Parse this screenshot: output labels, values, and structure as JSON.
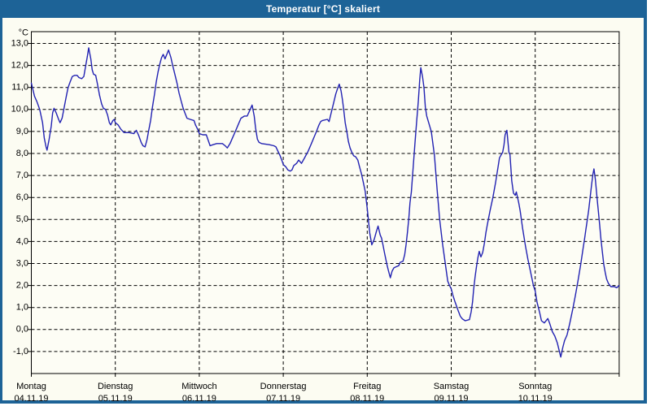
{
  "window": {
    "title": "Temperatur [°C] skaliert",
    "title_bar_color": "#1D6397",
    "border_color": "#1D6397",
    "background_color": "#FCFCF2",
    "plot_background_color": "#FDFDF5"
  },
  "chart_data": {
    "type": "line",
    "title": "Temperatur [°C] skaliert",
    "xlabel": "",
    "ylabel": "°C",
    "y_unit_label": "°C",
    "grid": "dashed",
    "legend": "none",
    "line_color": "#2222B2",
    "axis_color": "#000000",
    "ylim": [
      -2.0,
      13.5
    ],
    "xlim_hours": [
      0,
      168
    ],
    "y_ticks": [
      {
        "value": 13,
        "label": "13,0"
      },
      {
        "value": 12,
        "label": "12,0"
      },
      {
        "value": 11,
        "label": "11,0"
      },
      {
        "value": 10,
        "label": "10,0"
      },
      {
        "value": 9,
        "label": "9,0"
      },
      {
        "value": 8,
        "label": "8,0"
      },
      {
        "value": 7,
        "label": "7,0"
      },
      {
        "value": 6,
        "label": "6,0"
      },
      {
        "value": 5,
        "label": "5,0"
      },
      {
        "value": 4,
        "label": "4,0"
      },
      {
        "value": 3,
        "label": "3,0"
      },
      {
        "value": 2,
        "label": "2,0"
      },
      {
        "value": 1,
        "label": "1,0"
      },
      {
        "value": 0,
        "label": "0,0"
      },
      {
        "value": -1,
        "label": "-1,0"
      }
    ],
    "x_days": [
      {
        "weekday": "Montag",
        "date": "04.11.19"
      },
      {
        "weekday": "Dienstag",
        "date": "05.11.19"
      },
      {
        "weekday": "Mittwoch",
        "date": "06.11.19"
      },
      {
        "weekday": "Donnerstag",
        "date": "07.11.19"
      },
      {
        "weekday": "Freitag",
        "date": "08.11.19"
      },
      {
        "weekday": "Samstag",
        "date": "09.11.19"
      },
      {
        "weekday": "Sonntag",
        "date": "10.11.19"
      }
    ],
    "series": [
      {
        "name": "Temperatur",
        "points": [
          [
            0,
            11.2
          ],
          [
            0.9,
            10.6
          ],
          [
            1.6,
            10.35
          ],
          [
            2.4,
            10.0
          ],
          [
            3.2,
            9.4
          ],
          [
            3.7,
            8.7
          ],
          [
            4.2,
            8.3
          ],
          [
            4.5,
            8.15
          ],
          [
            5.1,
            8.65
          ],
          [
            5.7,
            9.25
          ],
          [
            6.1,
            9.85
          ],
          [
            6.5,
            10.05
          ],
          [
            7.1,
            9.85
          ],
          [
            7.8,
            9.55
          ],
          [
            8.2,
            9.4
          ],
          [
            8.8,
            9.6
          ],
          [
            9.4,
            10.1
          ],
          [
            10,
            10.6
          ],
          [
            10.5,
            11.0
          ],
          [
            11.1,
            11.25
          ],
          [
            11.7,
            11.5
          ],
          [
            12.4,
            11.55
          ],
          [
            13.1,
            11.55
          ],
          [
            13.6,
            11.45
          ],
          [
            14.4,
            11.4
          ],
          [
            15,
            11.5
          ],
          [
            15.6,
            12.05
          ],
          [
            16,
            12.4
          ],
          [
            16.4,
            12.8
          ],
          [
            17,
            12.3
          ],
          [
            17.4,
            11.8
          ],
          [
            17.8,
            11.6
          ],
          [
            18.4,
            11.55
          ],
          [
            18.9,
            11.15
          ],
          [
            19.5,
            10.65
          ],
          [
            20.1,
            10.25
          ],
          [
            20.6,
            10.05
          ],
          [
            21.2,
            10.0
          ],
          [
            21.8,
            9.75
          ],
          [
            22.3,
            9.4
          ],
          [
            22.7,
            9.3
          ],
          [
            23.3,
            9.5
          ],
          [
            23.7,
            9.55
          ],
          [
            24,
            9.4
          ],
          [
            24.8,
            9.3
          ],
          [
            25.6,
            9.1
          ],
          [
            26.5,
            8.95
          ],
          [
            28,
            8.95
          ],
          [
            29.3,
            8.9
          ],
          [
            30,
            9.05
          ],
          [
            30.6,
            8.85
          ],
          [
            31.4,
            8.5
          ],
          [
            31.9,
            8.35
          ],
          [
            32.5,
            8.3
          ],
          [
            33.1,
            8.65
          ],
          [
            33.5,
            9.0
          ],
          [
            34.1,
            9.5
          ],
          [
            34.6,
            10.1
          ],
          [
            35.2,
            10.7
          ],
          [
            35.7,
            11.25
          ],
          [
            36.2,
            11.7
          ],
          [
            36.7,
            12.05
          ],
          [
            37.2,
            12.35
          ],
          [
            37.7,
            12.5
          ],
          [
            38.2,
            12.3
          ],
          [
            39.2,
            12.7
          ],
          [
            39.9,
            12.35
          ],
          [
            40.4,
            12.0
          ],
          [
            41.1,
            11.55
          ],
          [
            41.7,
            11.15
          ],
          [
            42.2,
            10.75
          ],
          [
            42.8,
            10.4
          ],
          [
            43.4,
            10.05
          ],
          [
            44,
            9.8
          ],
          [
            44.5,
            9.6
          ],
          [
            45.4,
            9.55
          ],
          [
            46.5,
            9.5
          ],
          [
            46.9,
            9.3
          ],
          [
            47.7,
            9.05
          ],
          [
            48,
            8.9
          ],
          [
            49,
            8.85
          ],
          [
            50,
            8.85
          ],
          [
            51.1,
            8.35
          ],
          [
            51.9,
            8.4
          ],
          [
            53,
            8.45
          ],
          [
            54.6,
            8.45
          ],
          [
            55.4,
            8.35
          ],
          [
            56,
            8.25
          ],
          [
            56.8,
            8.45
          ],
          [
            57.6,
            8.75
          ],
          [
            58.3,
            9.0
          ],
          [
            59.1,
            9.3
          ],
          [
            59.9,
            9.6
          ],
          [
            60.9,
            9.7
          ],
          [
            61.7,
            9.7
          ],
          [
            62.4,
            9.95
          ],
          [
            63.1,
            10.2
          ],
          [
            63.7,
            9.7
          ],
          [
            64.1,
            9.15
          ],
          [
            64.6,
            8.65
          ],
          [
            65.1,
            8.5
          ],
          [
            65.8,
            8.45
          ],
          [
            68,
            8.4
          ],
          [
            69.3,
            8.35
          ],
          [
            69.9,
            8.3
          ],
          [
            70.5,
            8.1
          ],
          [
            71.1,
            7.9
          ],
          [
            71.8,
            7.6
          ],
          [
            72,
            7.5
          ],
          [
            72.7,
            7.4
          ],
          [
            73.3,
            7.25
          ],
          [
            74,
            7.2
          ],
          [
            74.5,
            7.25
          ],
          [
            75,
            7.45
          ],
          [
            75.8,
            7.55
          ],
          [
            76.4,
            7.7
          ],
          [
            77.2,
            7.55
          ],
          [
            78.1,
            7.8
          ],
          [
            79.1,
            8.1
          ],
          [
            79.9,
            8.4
          ],
          [
            80.7,
            8.7
          ],
          [
            81.5,
            9.0
          ],
          [
            82.2,
            9.3
          ],
          [
            82.7,
            9.45
          ],
          [
            83.2,
            9.5
          ],
          [
            84.6,
            9.55
          ],
          [
            85.1,
            9.45
          ],
          [
            85.7,
            9.85
          ],
          [
            86.4,
            10.3
          ],
          [
            87,
            10.7
          ],
          [
            87.5,
            10.95
          ],
          [
            88,
            11.15
          ],
          [
            88.5,
            10.85
          ],
          [
            88.9,
            10.45
          ],
          [
            89.3,
            9.95
          ],
          [
            89.7,
            9.4
          ],
          [
            90.2,
            8.95
          ],
          [
            90.6,
            8.55
          ],
          [
            91.1,
            8.25
          ],
          [
            91.6,
            8.05
          ],
          [
            92.1,
            7.9
          ],
          [
            92.7,
            7.85
          ],
          [
            93.3,
            7.7
          ],
          [
            93.8,
            7.4
          ],
          [
            94.3,
            7.1
          ],
          [
            94.8,
            6.75
          ],
          [
            95.4,
            6.3
          ],
          [
            96,
            5.5
          ],
          [
            96.7,
            4.4
          ],
          [
            97.3,
            3.85
          ],
          [
            98,
            4.1
          ],
          [
            98.6,
            4.45
          ],
          [
            99.1,
            4.7
          ],
          [
            99.7,
            4.3
          ],
          [
            100.1,
            4.15
          ],
          [
            100.5,
            3.85
          ],
          [
            100.9,
            3.5
          ],
          [
            101.3,
            3.2
          ],
          [
            101.7,
            2.9
          ],
          [
            102.1,
            2.65
          ],
          [
            102.6,
            2.35
          ],
          [
            103.1,
            2.65
          ],
          [
            103.6,
            2.8
          ],
          [
            104.2,
            2.85
          ],
          [
            105,
            2.9
          ],
          [
            105.4,
            3.05
          ],
          [
            106.2,
            3.1
          ],
          [
            106.7,
            3.4
          ],
          [
            107.1,
            3.85
          ],
          [
            107.5,
            4.45
          ],
          [
            107.9,
            5.1
          ],
          [
            108.2,
            5.75
          ],
          [
            108.6,
            6.25
          ],
          [
            109.1,
            7.3
          ],
          [
            109.6,
            8.4
          ],
          [
            110.1,
            9.4
          ],
          [
            110.6,
            10.4
          ],
          [
            111,
            11.35
          ],
          [
            111.3,
            11.9
          ],
          [
            111.8,
            11.5
          ],
          [
            112.2,
            11.0
          ],
          [
            112.6,
            10.1
          ],
          [
            113,
            9.7
          ],
          [
            114.3,
            9.0
          ],
          [
            115.2,
            7.9
          ],
          [
            116,
            6.3
          ],
          [
            116.7,
            5.0
          ],
          [
            117.5,
            3.9
          ],
          [
            118.3,
            3.0
          ],
          [
            119,
            2.2
          ],
          [
            119.5,
            2.0
          ],
          [
            120,
            1.85
          ],
          [
            120.5,
            1.55
          ],
          [
            121,
            1.3
          ],
          [
            122,
            0.85
          ],
          [
            122.6,
            0.6
          ],
          [
            123.2,
            0.48
          ],
          [
            124,
            0.4
          ],
          [
            125.2,
            0.45
          ],
          [
            125.7,
            0.8
          ],
          [
            126.1,
            1.25
          ],
          [
            126.4,
            1.8
          ],
          [
            126.8,
            2.35
          ],
          [
            127.2,
            2.85
          ],
          [
            127.6,
            3.25
          ],
          [
            128,
            3.55
          ],
          [
            128.5,
            3.3
          ],
          [
            129,
            3.5
          ],
          [
            129.5,
            3.95
          ],
          [
            129.9,
            4.4
          ],
          [
            130.3,
            4.75
          ],
          [
            131.1,
            5.4
          ],
          [
            131.9,
            6.0
          ],
          [
            132.7,
            6.7
          ],
          [
            133.4,
            7.4
          ],
          [
            133.8,
            7.8
          ],
          [
            134.3,
            7.95
          ],
          [
            134.7,
            8.05
          ],
          [
            135.1,
            8.4
          ],
          [
            135.4,
            8.85
          ],
          [
            135.9,
            9.05
          ],
          [
            136.5,
            8.05
          ],
          [
            136.8,
            7.95
          ],
          [
            137.3,
            6.75
          ],
          [
            137.8,
            6.2
          ],
          [
            138.3,
            6.1
          ],
          [
            138.6,
            6.25
          ],
          [
            139.3,
            5.75
          ],
          [
            139.7,
            5.4
          ],
          [
            140.4,
            4.6
          ],
          [
            141.2,
            3.8
          ],
          [
            141.9,
            3.2
          ],
          [
            142.7,
            2.6
          ],
          [
            143.5,
            2.0
          ],
          [
            144,
            1.75
          ],
          [
            144.5,
            1.25
          ],
          [
            145.3,
            0.75
          ],
          [
            145.8,
            0.4
          ],
          [
            146.6,
            0.3
          ],
          [
            147.6,
            0.5
          ],
          [
            148.1,
            0.3
          ],
          [
            148.9,
            -0.1
          ],
          [
            149.6,
            -0.3
          ],
          [
            150.3,
            -0.6
          ],
          [
            151,
            -1.05
          ],
          [
            151.3,
            -1.25
          ],
          [
            151.9,
            -0.8
          ],
          [
            152.4,
            -0.5
          ],
          [
            153.1,
            -0.25
          ],
          [
            153.9,
            0.3
          ],
          [
            154.7,
            0.9
          ],
          [
            155.5,
            1.55
          ],
          [
            156.2,
            2.2
          ],
          [
            157,
            2.95
          ],
          [
            157.7,
            3.7
          ],
          [
            158.1,
            4.1
          ],
          [
            158.5,
            4.55
          ],
          [
            158.9,
            5.0
          ],
          [
            159.3,
            5.45
          ],
          [
            159.7,
            6.0
          ],
          [
            160.1,
            6.55
          ],
          [
            160.5,
            7.05
          ],
          [
            160.8,
            7.3
          ],
          [
            161.2,
            6.8
          ],
          [
            161.6,
            6.1
          ],
          [
            162,
            5.45
          ],
          [
            162.4,
            4.8
          ],
          [
            162.8,
            4.1
          ],
          [
            163.2,
            3.5
          ],
          [
            163.6,
            2.95
          ],
          [
            164,
            2.6
          ],
          [
            164.4,
            2.3
          ],
          [
            164.9,
            2.1
          ],
          [
            165.6,
            1.95
          ],
          [
            166.6,
            1.95
          ],
          [
            167.3,
            1.9
          ],
          [
            168,
            2.0
          ]
        ]
      }
    ]
  }
}
